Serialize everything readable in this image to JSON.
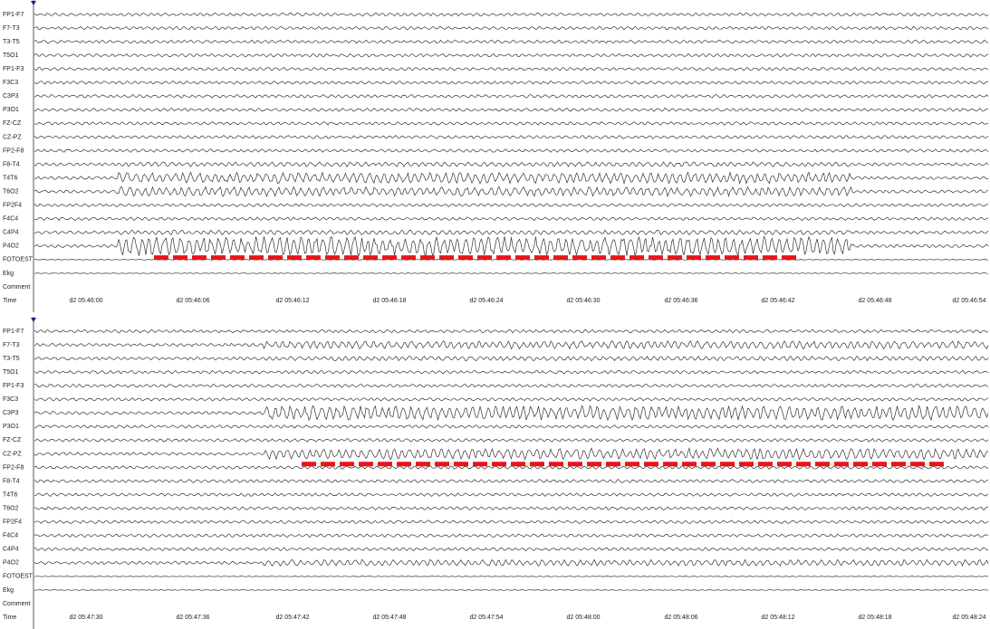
{
  "panels": [
    {
      "channels": [
        "FP1-F7",
        "F7-T3",
        "T3-T5",
        "T5O1",
        "FP1-F3",
        "F3C3",
        "C3P3",
        "P3O1",
        "FZ-CZ",
        "CZ-PZ",
        "FP2-F8",
        "F8-T4",
        "T4T6",
        "T6O2",
        "FP2F4",
        "F4C4",
        "C4P4",
        "P4O2",
        "FOTOEST",
        "Ekg",
        "Comment",
        "Time"
      ],
      "times": [
        "d2 05:46:00",
        "d2 05:46:06",
        "d2 05:46:12",
        "d2 05:46:18",
        "d2 05:46:24",
        "d2 05:46:30",
        "d2 05:46:36",
        "d2 05:46:42",
        "d2 05:46:48",
        "d2 05:46:54"
      ]
    },
    {
      "channels": [
        "FP1-F7",
        "F7-T3",
        "T3-T5",
        "T5O1",
        "FP1-F3",
        "F3C3",
        "C3P3",
        "P3O1",
        "FZ-CZ",
        "CZ-PZ",
        "FP2-F8",
        "F8-T4",
        "T4T6",
        "T6O2",
        "FP2F4",
        "F4C4",
        "C4P4",
        "P4O2",
        "FOTOEST",
        "Ekg",
        "Comment",
        "Time"
      ],
      "times": [
        "d2 05:47:30",
        "d2 05:47:36",
        "d2 05:47:42",
        "d2 05:47:48",
        "d2 05:47:54",
        "d2 05:48:00",
        "d2 05:48:06",
        "d2 05:48:12",
        "d2 05:48:18",
        "d2 05:48:24"
      ]
    }
  ]
}
